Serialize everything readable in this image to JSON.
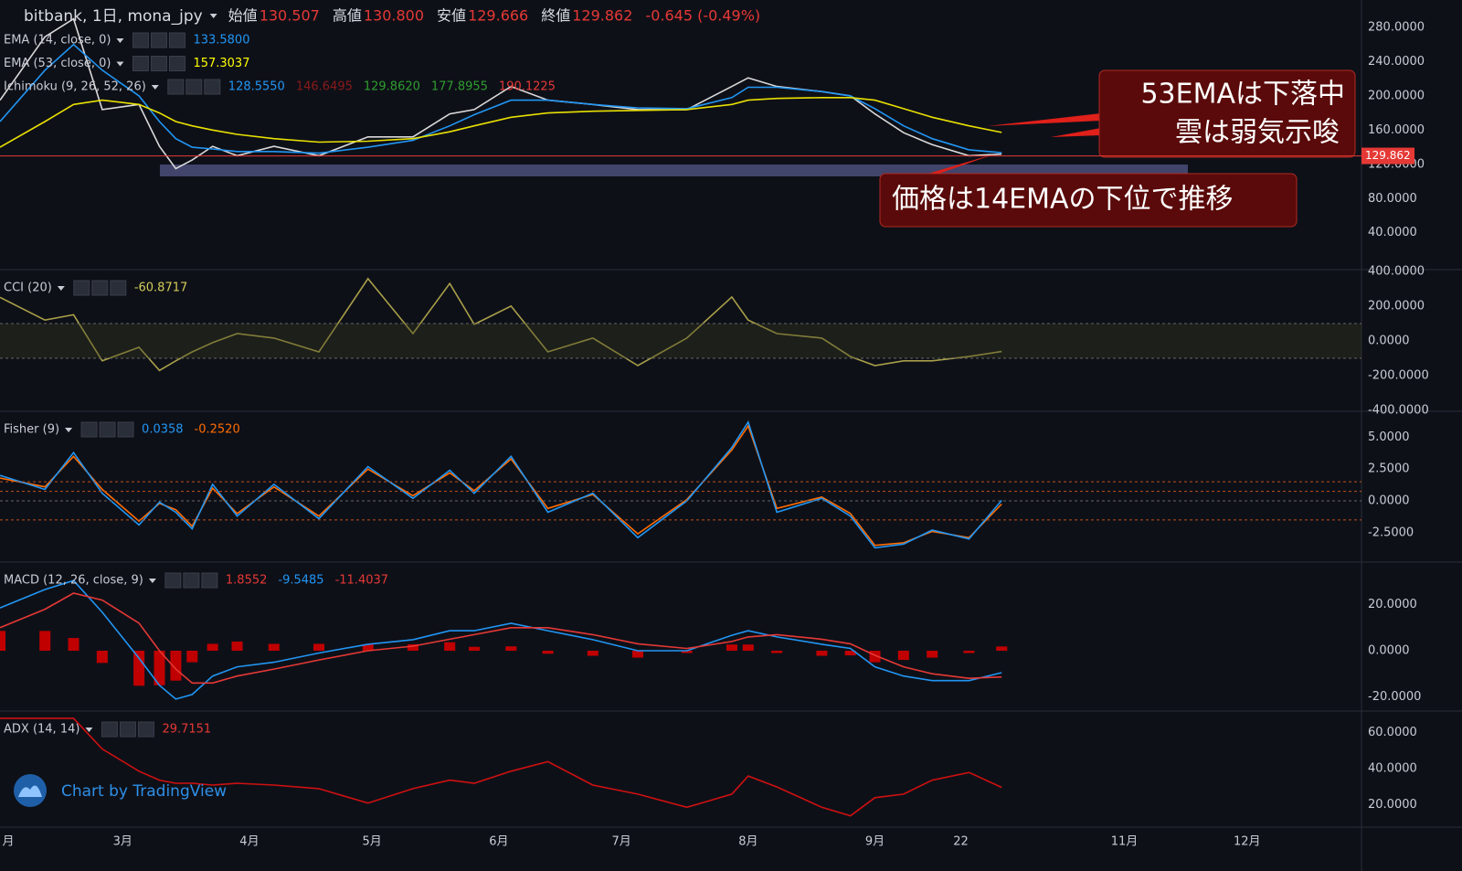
{
  "header": {
    "title": "bitbank, 1日, mona_jpy",
    "ohlc": [
      {
        "label": "始値",
        "value": 130.507
      },
      {
        "label": "高値",
        "value": 130.8
      },
      {
        "label": "安値",
        "value": 129.666
      },
      {
        "label": "終値",
        "value": 129.862
      }
    ],
    "change": "-0.645 (-0.49%)",
    "price_label": "129.862",
    "ohlc_labels": [
      "130.507",
      "130.800",
      "129.666",
      "129.862"
    ]
  },
  "annotations": [
    "53EMAは下落中",
    "雲は弱気示唆",
    "価格は14EMAの下位で推移"
  ],
  "watermark": "Chart by TradingView",
  "chart_data": [
    {
      "type": "line",
      "legend": [
        {
          "text": "EMA (14, close, 0)",
          "values": [
            "133.5800"
          ],
          "colors": [
            "#2196f3"
          ]
        },
        {
          "text": "EMA (53, close, 0)",
          "values": [
            "157.3037"
          ],
          "colors": [
            "#ffff00"
          ]
        },
        {
          "text": "Ichimoku (9, 26, 52, 26)",
          "values": [
            "128.5550",
            "146.6495",
            "129.8620",
            "177.8955",
            "190.1225"
          ],
          "colors": [
            "#2196f3",
            "#8b1a1a",
            "#2e9e2e",
            "#2e9e2e",
            "#e53935"
          ]
        }
      ],
      "x": [
        -2,
        9,
        16,
        23,
        32,
        37,
        41,
        45,
        50,
        56,
        65,
        76,
        88,
        99,
        108,
        114,
        123,
        132,
        143,
        154,
        166,
        177,
        181,
        188,
        199,
        206,
        212,
        219,
        226,
        235,
        243
      ],
      "series": [
        {
          "color": "#d9d9d9",
          "values": [
            195,
            269,
            290,
            184,
            190,
            141,
            115,
            125,
            141,
            130,
            141,
            130,
            152,
            152,
            179,
            184,
            211,
            195,
            190,
            184,
            184,
            211,
            221,
            211,
            205,
            200,
            179,
            157,
            143,
            130,
            132
          ]
        },
        {
          "color": "#2196f3",
          "values": [
            170,
            230,
            260,
            230,
            200,
            170,
            150,
            140,
            138,
            135,
            135,
            133,
            140,
            148,
            165,
            178,
            195,
            195,
            190,
            186,
            185,
            198,
            210,
            210,
            205,
            200,
            185,
            165,
            150,
            137,
            133.58
          ]
        },
        {
          "color": "#e8e000",
          "values": [
            140,
            170,
            190,
            195,
            190,
            180,
            170,
            165,
            160,
            155,
            150,
            146,
            147,
            150,
            158,
            165,
            175,
            180,
            182,
            183,
            184,
            190,
            195,
            197,
            198,
            198,
            195,
            185,
            175,
            165,
            157.3037
          ]
        }
      ],
      "price_line": 129.862,
      "ylim": [
        -3,
        312
      ],
      "yticks": [
        {
          "value": 40,
          "label": "40.0000"
        },
        {
          "value": 80,
          "label": "80.0000"
        },
        {
          "value": 120,
          "label": "120.0000"
        },
        {
          "value": 160,
          "label": "160.0000"
        },
        {
          "value": 200,
          "label": "200.0000"
        },
        {
          "value": 240,
          "label": "240.0000"
        },
        {
          "value": 280,
          "label": "280.0000"
        }
      ]
    },
    {
      "type": "line",
      "legend": [
        {
          "text": "CCI (20)",
          "values": [
            "-60.8717"
          ],
          "colors": [
            "#d4cc5a"
          ]
        }
      ],
      "x": [
        -2,
        9,
        16,
        23,
        32,
        37,
        41,
        45,
        50,
        56,
        65,
        76,
        88,
        99,
        108,
        114,
        123,
        132,
        143,
        154,
        166,
        177,
        181,
        188,
        199,
        206,
        212,
        219,
        226,
        235,
        243
      ],
      "series": [
        {
          "color": "#a89f48",
          "values": [
            250,
            120,
            150,
            -115,
            -37,
            -170,
            -115,
            -63,
            -10,
            42,
            16,
            -63,
            358,
            42,
            330,
            95,
            200,
            -63,
            16,
            -142,
            16,
            253,
            120,
            42,
            16,
            -90,
            -142,
            -115,
            -115,
            -90,
            -60.8717
          ]
        }
      ],
      "band": [
        -100,
        100
      ],
      "ylim": [
        -405,
        410
      ],
      "yticks": [
        {
          "value": -400,
          "label": "-400.0000"
        },
        {
          "value": -200,
          "label": "-200.0000"
        },
        {
          "value": 0,
          "label": "0.0000"
        },
        {
          "value": 200,
          "label": "200.0000"
        },
        {
          "value": 400,
          "label": "400.0000"
        }
      ]
    },
    {
      "type": "line",
      "legend": [
        {
          "text": "Fisher (9)",
          "values": [
            "0.0358",
            "-0.2520"
          ],
          "colors": [
            "#2196f3",
            "#ff6d00"
          ]
        }
      ],
      "x": [
        -2,
        9,
        16,
        23,
        32,
        37,
        41,
        45,
        50,
        56,
        65,
        76,
        88,
        99,
        108,
        114,
        123,
        132,
        143,
        154,
        166,
        177,
        181,
        188,
        199,
        206,
        212,
        219,
        226,
        235,
        243
      ],
      "series": [
        {
          "color": "#ff6d00",
          "values": [
            1.8,
            1.1,
            3.5,
            0.9,
            -1.6,
            -0.2,
            -0.7,
            -2.0,
            1.0,
            -1.0,
            1.1,
            -1.2,
            2.5,
            0.4,
            2.2,
            0.8,
            3.3,
            -0.6,
            0.5,
            -2.6,
            0.1,
            4.0,
            5.9,
            -0.6,
            0.3,
            -1.0,
            -3.5,
            -3.3,
            -2.4,
            -2.9,
            -0.252
          ]
        },
        {
          "color": "#2196f3",
          "values": [
            2.0,
            0.9,
            3.8,
            0.6,
            -1.9,
            -0.1,
            -0.9,
            -2.2,
            1.3,
            -1.2,
            1.3,
            -1.4,
            2.7,
            0.2,
            2.4,
            0.6,
            3.5,
            -0.9,
            0.6,
            -2.9,
            0,
            4.2,
            6.2,
            -0.9,
            0.2,
            -1.2,
            -3.7,
            -3.4,
            -2.3,
            -3.0,
            0.0358
          ]
        }
      ],
      "levels": [
        1.5,
        0.75,
        0,
        -1.5
      ],
      "ylim": [
        -4.82,
        7.05
      ],
      "yticks": [
        {
          "value": -2.5,
          "label": "-2.5000"
        },
        {
          "value": 0,
          "label": "0.0000"
        },
        {
          "value": 2.5,
          "label": "2.5000"
        },
        {
          "value": 5,
          "label": "5.0000"
        }
      ]
    },
    {
      "type": "line",
      "legend": [
        {
          "text": "MACD (12, 26, close, 9)",
          "values": [
            "1.8552",
            "-9.5485",
            "-11.4037"
          ],
          "colors": [
            "#e53935",
            "#2196f3",
            "#e53935"
          ]
        }
      ],
      "x": [
        -2,
        9,
        16,
        23,
        32,
        37,
        41,
        45,
        50,
        56,
        65,
        76,
        88,
        99,
        108,
        114,
        123,
        132,
        143,
        154,
        166,
        177,
        181,
        188,
        199,
        206,
        212,
        219,
        226,
        235,
        243
      ],
      "series": [
        {
          "color": "#c00000",
          "style": "histogram",
          "values": [
            8.6,
            8.6,
            5.5,
            -5.3,
            -15.2,
            -15,
            -13,
            -5,
            3,
            4,
            3,
            3,
            2.8,
            2.8,
            3.7,
            1.7,
            1.9,
            -1.3,
            -2.2,
            -3,
            -1,
            2.7,
            2.7,
            -1,
            -2.2,
            -2,
            -5,
            -4,
            -3,
            -1,
            1.8552
          ]
        },
        {
          "color": "#2196f3",
          "values": [
            18.6,
            26.6,
            30.5,
            16.7,
            -3.2,
            -15,
            -21,
            -19,
            -11,
            -7,
            -5,
            -1,
            2.8,
            4.8,
            8.7,
            8.7,
            11.9,
            8.7,
            4.8,
            0,
            0,
            6.7,
            8.7,
            6,
            2.8,
            1,
            -7,
            -11,
            -13,
            -13,
            -9.5485
          ]
        },
        {
          "color": "#e53935",
          "values": [
            10,
            18,
            25,
            22,
            12,
            0,
            -8,
            -14,
            -14,
            -11,
            -8,
            -4,
            0,
            2,
            5,
            7,
            10,
            10,
            7,
            3,
            1,
            4,
            6,
            7,
            5,
            3,
            -2,
            -7,
            -10,
            -12,
            -11.4037
          ]
        }
      ],
      "ylim": [
        -26.2,
        38.5
      ],
      "yticks": [
        {
          "value": -20,
          "label": "-20.0000"
        },
        {
          "value": 0,
          "label": "0.0000"
        },
        {
          "value": 20,
          "label": "20.0000"
        }
      ]
    },
    {
      "type": "line",
      "legend": [
        {
          "text": "ADX (14, 14)",
          "values": [
            "29.7151"
          ],
          "colors": [
            "#e53935"
          ]
        }
      ],
      "x": [
        -2,
        9,
        16,
        23,
        32,
        37,
        41,
        45,
        50,
        56,
        65,
        76,
        88,
        99,
        108,
        114,
        123,
        132,
        143,
        154,
        166,
        177,
        181,
        188,
        199,
        206,
        212,
        219,
        226,
        235,
        243
      ],
      "series": [
        {
          "color": "#d01010",
          "values": [
            68,
            68,
            68,
            51,
            38.7,
            33.7,
            32,
            32,
            31,
            32,
            31,
            29,
            21,
            29,
            33.7,
            32,
            38.7,
            44,
            31,
            26,
            18.7,
            26,
            36,
            30,
            18.7,
            14,
            24,
            26,
            33.7,
            38,
            29.7151
          ]
        }
      ],
      "ylim": [
        7.7,
        72
      ],
      "yticks": [
        {
          "value": 20,
          "label": "20.0000"
        },
        {
          "value": 40,
          "label": "40.0000"
        },
        {
          "value": 60,
          "label": "60.0000"
        }
      ],
      "xlim": [
        -2,
        331
      ],
      "xticks": [
        {
          "value": 0,
          "label": "月"
        },
        {
          "value": 28,
          "label": "3月"
        },
        {
          "value": 59,
          "label": "4月"
        },
        {
          "value": 89,
          "label": "5月"
        },
        {
          "value": 120,
          "label": "6月"
        },
        {
          "value": 150,
          "label": "7月"
        },
        {
          "value": 181,
          "label": "8月"
        },
        {
          "value": 212,
          "label": "9月"
        },
        {
          "value": 233,
          "label": "22"
        },
        {
          "value": 273,
          "label": "11月"
        },
        {
          "value": 303,
          "label": "12月"
        }
      ]
    }
  ]
}
